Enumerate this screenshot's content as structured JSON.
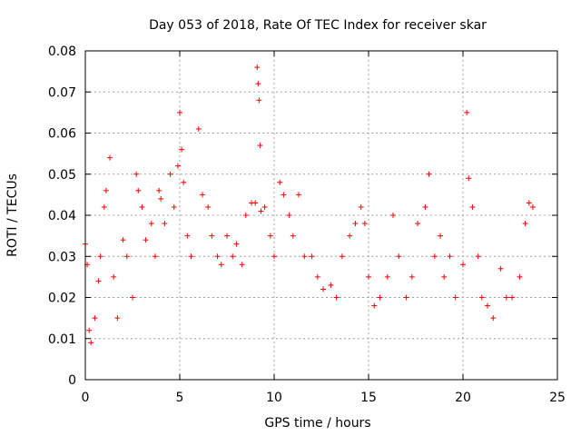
{
  "chart_data": {
    "type": "scatter",
    "title": "Day 053 of 2018, Rate Of TEC Index for receiver skar",
    "xlabel": "GPS time / hours",
    "ylabel": "ROTI / TECUs",
    "xlim": [
      0,
      25
    ],
    "ylim": [
      0,
      0.08
    ],
    "x_ticks": [
      0,
      5,
      10,
      15,
      20,
      25
    ],
    "x_tick_labels": [
      "0",
      "5",
      "10",
      "15",
      "20",
      "25"
    ],
    "y_ticks": [
      0,
      0.01,
      0.02,
      0.03,
      0.04,
      0.05,
      0.06,
      0.07,
      0.08
    ],
    "y_tick_labels": [
      "0",
      "0.01",
      "0.02",
      "0.03",
      "0.04",
      "0.05",
      "0.06",
      "0.07",
      "0.08"
    ],
    "grid": true,
    "marker": "plus",
    "color": "#ff0000",
    "series": [
      {
        "points": [
          [
            0.0,
            0.033
          ],
          [
            0.1,
            0.028
          ],
          [
            0.2,
            0.012
          ],
          [
            0.3,
            0.009
          ],
          [
            0.5,
            0.015
          ],
          [
            0.7,
            0.024
          ],
          [
            0.8,
            0.03
          ],
          [
            1.0,
            0.042
          ],
          [
            1.1,
            0.046
          ],
          [
            1.3,
            0.054
          ],
          [
            1.5,
            0.025
          ],
          [
            1.7,
            0.015
          ],
          [
            2.0,
            0.034
          ],
          [
            2.2,
            0.03
          ],
          [
            2.5,
            0.02
          ],
          [
            2.7,
            0.05
          ],
          [
            2.8,
            0.046
          ],
          [
            3.0,
            0.042
          ],
          [
            3.2,
            0.034
          ],
          [
            3.5,
            0.038
          ],
          [
            3.7,
            0.03
          ],
          [
            3.9,
            0.046
          ],
          [
            4.0,
            0.044
          ],
          [
            4.2,
            0.038
          ],
          [
            4.5,
            0.05
          ],
          [
            4.7,
            0.042
          ],
          [
            4.9,
            0.052
          ],
          [
            5.0,
            0.065
          ],
          [
            5.1,
            0.056
          ],
          [
            5.2,
            0.048
          ],
          [
            5.4,
            0.035
          ],
          [
            5.6,
            0.03
          ],
          [
            6.0,
            0.061
          ],
          [
            6.2,
            0.045
          ],
          [
            6.5,
            0.042
          ],
          [
            6.7,
            0.035
          ],
          [
            7.0,
            0.03
          ],
          [
            7.2,
            0.028
          ],
          [
            7.5,
            0.035
          ],
          [
            7.8,
            0.03
          ],
          [
            8.0,
            0.033
          ],
          [
            8.3,
            0.028
          ],
          [
            8.5,
            0.04
          ],
          [
            8.8,
            0.043
          ],
          [
            9.0,
            0.043
          ],
          [
            9.1,
            0.076
          ],
          [
            9.15,
            0.072
          ],
          [
            9.2,
            0.068
          ],
          [
            9.25,
            0.057
          ],
          [
            9.3,
            0.041
          ],
          [
            9.5,
            0.042
          ],
          [
            9.8,
            0.035
          ],
          [
            10.0,
            0.03
          ],
          [
            10.3,
            0.048
          ],
          [
            10.5,
            0.045
          ],
          [
            10.8,
            0.04
          ],
          [
            11.0,
            0.035
          ],
          [
            11.3,
            0.045
          ],
          [
            11.6,
            0.03
          ],
          [
            12.0,
            0.03
          ],
          [
            12.3,
            0.025
          ],
          [
            12.6,
            0.022
          ],
          [
            13.0,
            0.023
          ],
          [
            13.3,
            0.02
          ],
          [
            13.6,
            0.03
          ],
          [
            14.0,
            0.035
          ],
          [
            14.3,
            0.038
          ],
          [
            14.6,
            0.042
          ],
          [
            14.8,
            0.038
          ],
          [
            15.0,
            0.025
          ],
          [
            15.3,
            0.018
          ],
          [
            15.6,
            0.02
          ],
          [
            16.0,
            0.025
          ],
          [
            16.3,
            0.04
          ],
          [
            16.6,
            0.03
          ],
          [
            17.0,
            0.02
          ],
          [
            17.3,
            0.025
          ],
          [
            17.6,
            0.038
          ],
          [
            18.0,
            0.042
          ],
          [
            18.2,
            0.05
          ],
          [
            18.5,
            0.03
          ],
          [
            18.8,
            0.035
          ],
          [
            19.0,
            0.025
          ],
          [
            19.3,
            0.03
          ],
          [
            19.6,
            0.02
          ],
          [
            20.0,
            0.028
          ],
          [
            20.2,
            0.065
          ],
          [
            20.3,
            0.049
          ],
          [
            20.5,
            0.042
          ],
          [
            20.8,
            0.03
          ],
          [
            21.0,
            0.02
          ],
          [
            21.3,
            0.018
          ],
          [
            21.6,
            0.015
          ],
          [
            22.0,
            0.027
          ],
          [
            22.3,
            0.02
          ],
          [
            22.6,
            0.02
          ],
          [
            23.0,
            0.025
          ],
          [
            23.3,
            0.038
          ],
          [
            23.5,
            0.043
          ],
          [
            23.7,
            0.042
          ]
        ]
      }
    ]
  }
}
